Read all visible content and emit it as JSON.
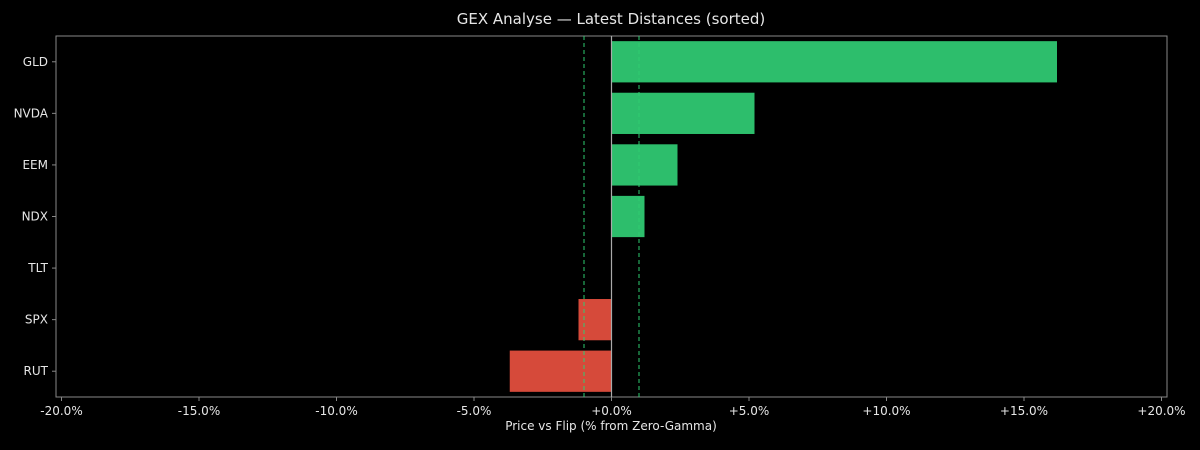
{
  "chart_data": {
    "type": "bar",
    "orientation": "horizontal",
    "title": "GEX Analyse — Latest Distances (sorted)",
    "xlabel": "Price vs Flip (% from Zero-Gamma)",
    "ylabel": "",
    "categories": [
      "GLD",
      "NVDA",
      "EEM",
      "NDX",
      "TLT",
      "SPX",
      "RUT"
    ],
    "values": [
      16.2,
      5.2,
      2.4,
      1.2,
      0.0,
      -1.2,
      -3.7
    ],
    "xlim": [
      -20.2,
      20.2
    ],
    "xticks": [
      -20,
      -15,
      -10,
      -5,
      0,
      5,
      10,
      15,
      20
    ],
    "xtick_labels": [
      "-20.0%",
      "-15.0%",
      "-10.0%",
      "-5.0%",
      "+0.0%",
      "+5.0%",
      "+10.0%",
      "+15.0%",
      "+20.0%"
    ],
    "reference_lines": [
      {
        "x": 0,
        "style": "solid",
        "color": "#aaaaaa"
      },
      {
        "x": -1,
        "style": "dashed",
        "color": "#2ecc71"
      },
      {
        "x": 1,
        "style": "dashed",
        "color": "#2ecc71"
      }
    ],
    "colors": {
      "positive": "#2dbe6c",
      "negative": "#d64a3a",
      "background": "#000000",
      "axes": "#888888",
      "text": "#e6e6e6"
    },
    "grid": false,
    "legend": "none"
  }
}
